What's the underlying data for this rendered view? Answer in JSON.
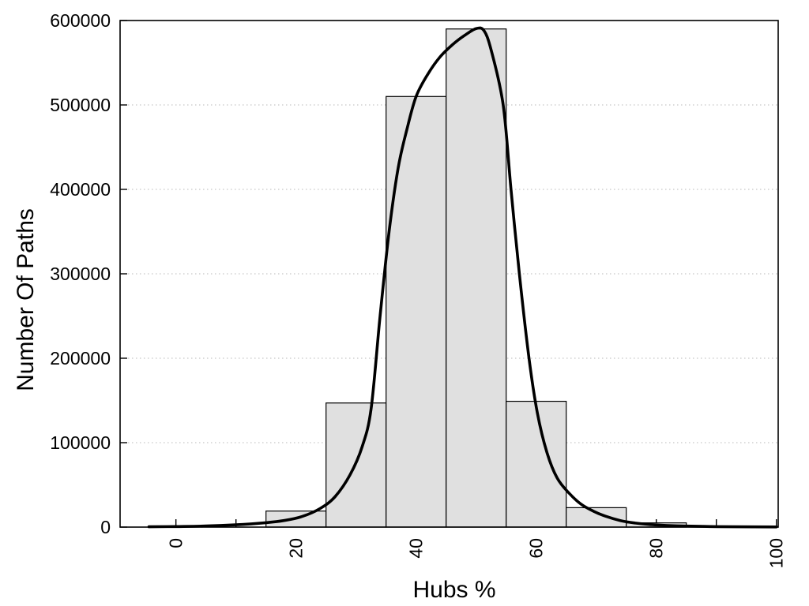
{
  "page": {
    "background": "#ffffff"
  },
  "chart_data": {
    "type": "histogram",
    "title": "",
    "xlabel": "Hubs %",
    "ylabel": "Number Of Paths",
    "xlim": [
      -9.3,
      100.3
    ],
    "ylim": [
      0,
      600000
    ],
    "x_major_ticks": [
      0,
      20,
      40,
      60,
      80,
      100
    ],
    "x_minor_ticks": [
      10,
      30,
      50,
      70,
      90
    ],
    "y_ticks": [
      0,
      100000,
      200000,
      300000,
      400000,
      500000,
      600000
    ],
    "grid": {
      "horizontal_dotted_at": [
        100000,
        200000,
        300000,
        400000,
        500000
      ],
      "vertical": false
    },
    "legend": "none",
    "bins": [
      {
        "x0": 15,
        "x1": 25,
        "count": 19000
      },
      {
        "x0": 25,
        "x1": 35,
        "count": 147000
      },
      {
        "x0": 35,
        "x1": 45,
        "count": 510000
      },
      {
        "x0": 45,
        "x1": 55,
        "count": 590000
      },
      {
        "x0": 55,
        "x1": 65,
        "count": 149000
      },
      {
        "x0": 65,
        "x1": 75,
        "count": 23000
      },
      {
        "x0": 75,
        "x1": 85,
        "count": 5000
      }
    ],
    "curve": {
      "name": "density-curve",
      "points": [
        [
          -4.5,
          400
        ],
        [
          0,
          700
        ],
        [
          5,
          1300
        ],
        [
          10,
          2700
        ],
        [
          15,
          5200
        ],
        [
          18,
          7800
        ],
        [
          21,
          12500
        ],
        [
          24,
          22000
        ],
        [
          26.5,
          36000
        ],
        [
          29,
          62000
        ],
        [
          31,
          95000
        ],
        [
          32.5,
          140000
        ],
        [
          34,
          250000
        ],
        [
          35.5,
          350000
        ],
        [
          37,
          425000
        ],
        [
          38.5,
          472000
        ],
        [
          40,
          510000
        ],
        [
          42,
          537000
        ],
        [
          44,
          557000
        ],
        [
          46,
          571000
        ],
        [
          48,
          582000
        ],
        [
          50,
          590500
        ],
        [
          51.3,
          588000
        ],
        [
          52.5,
          565000
        ],
        [
          54.5,
          500000
        ],
        [
          55.8,
          400000
        ],
        [
          57.2,
          300000
        ],
        [
          58.8,
          200000
        ],
        [
          60.2,
          135000
        ],
        [
          61.8,
          88000
        ],
        [
          63.5,
          58000
        ],
        [
          65.5,
          40000
        ],
        [
          67.5,
          27000
        ],
        [
          69.5,
          19000
        ],
        [
          71.5,
          13000
        ],
        [
          74,
          7800
        ],
        [
          76.5,
          4800
        ],
        [
          79,
          3000
        ],
        [
          82,
          1900
        ],
        [
          85,
          1200
        ],
        [
          89,
          700
        ],
        [
          93,
          400
        ],
        [
          100,
          200
        ]
      ]
    },
    "colors": {
      "bar_fill": "#e0e0e0",
      "bar_border": "#000000",
      "curve": "#000000",
      "grid": "#b8b8b8",
      "axis": "#000000",
      "text": "#000000"
    }
  }
}
